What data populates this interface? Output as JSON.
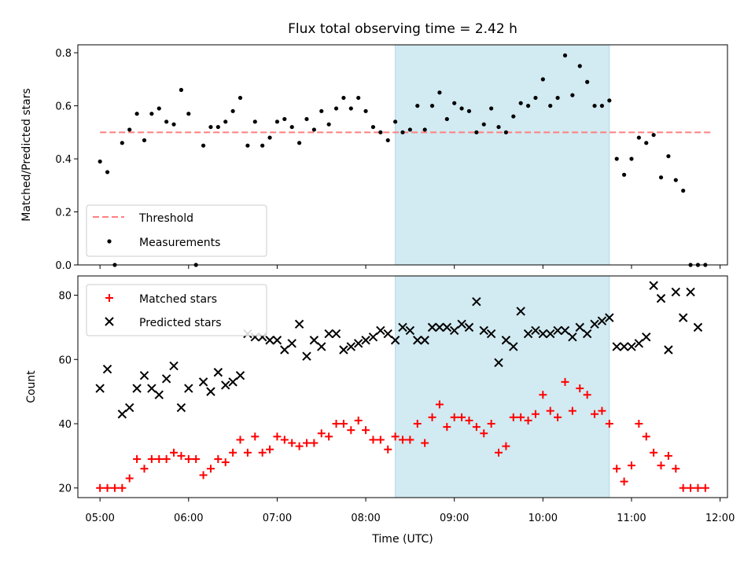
{
  "chart_data": [
    {
      "type": "scatter",
      "title": "Flux total observing time = 2.42 h",
      "ylabel": "Matched/Predicted stars",
      "xlabel": "",
      "xlim": [
        "04:45",
        "12:05"
      ],
      "ylim": [
        0,
        0.83
      ],
      "yticks": [
        "0.0",
        "0.2",
        "0.4",
        "0.6",
        "0.8"
      ],
      "xticks": [
        "05:00",
        "06:00",
        "07:00",
        "08:00",
        "09:00",
        "10:00",
        "11:00",
        "12:00"
      ],
      "shaded_interval": [
        "08:20",
        "10:45"
      ],
      "shade_color": "#add8e6",
      "threshold": {
        "name": "Threshold",
        "value": 0.5,
        "color": "#ff7f7f",
        "style": "dashed"
      },
      "series": [
        {
          "name": "Measurements",
          "color": "#000000",
          "marker": "dot",
          "x": [
            "05:00",
            "05:05",
            "05:10",
            "05:15",
            "05:20",
            "05:25",
            "05:30",
            "05:35",
            "05:40",
            "05:45",
            "05:50",
            "05:55",
            "06:00",
            "06:05",
            "06:10",
            "06:15",
            "06:20",
            "06:25",
            "06:30",
            "06:35",
            "06:40",
            "06:45",
            "06:50",
            "06:55",
            "07:00",
            "07:05",
            "07:10",
            "07:15",
            "07:20",
            "07:25",
            "07:30",
            "07:35",
            "07:40",
            "07:45",
            "07:50",
            "07:55",
            "08:00",
            "08:05",
            "08:10",
            "08:15",
            "08:20",
            "08:25",
            "08:30",
            "08:35",
            "08:40",
            "08:45",
            "08:50",
            "08:55",
            "09:00",
            "09:05",
            "09:10",
            "09:15",
            "09:20",
            "09:25",
            "09:30",
            "09:35",
            "09:40",
            "09:45",
            "09:50",
            "09:55",
            "10:00",
            "10:05",
            "10:10",
            "10:15",
            "10:20",
            "10:25",
            "10:30",
            "10:35",
            "10:40",
            "10:45",
            "10:50",
            "10:55",
            "11:00",
            "11:05",
            "11:10",
            "11:15",
            "11:20",
            "11:25",
            "11:30",
            "11:35",
            "11:40",
            "11:45",
            "11:50"
          ],
          "y": [
            0.39,
            0.35,
            0.0,
            0.46,
            0.51,
            0.57,
            0.47,
            0.57,
            0.59,
            0.54,
            0.53,
            0.66,
            0.57,
            0.0,
            0.45,
            0.52,
            0.52,
            0.54,
            0.58,
            0.63,
            0.45,
            0.54,
            0.45,
            0.48,
            0.54,
            0.55,
            0.52,
            0.46,
            0.55,
            0.51,
            0.58,
            0.53,
            0.59,
            0.63,
            0.59,
            0.63,
            0.58,
            0.52,
            0.5,
            0.47,
            0.54,
            0.5,
            0.51,
            0.6,
            0.51,
            0.6,
            0.65,
            0.55,
            0.61,
            0.59,
            0.58,
            0.5,
            0.53,
            0.59,
            0.52,
            0.5,
            0.56,
            0.61,
            0.6,
            0.63,
            0.7,
            0.6,
            0.63,
            0.79,
            0.64,
            0.75,
            0.69,
            0.6,
            0.6,
            0.62,
            0.4,
            0.34,
            0.4,
            0.48,
            0.46,
            0.49,
            0.33,
            0.41,
            0.32,
            0.28,
            0.0,
            0.0,
            0.0
          ]
        }
      ],
      "legend": {
        "placement": "lower-left",
        "entries": [
          "Threshold",
          "Measurements"
        ]
      }
    },
    {
      "type": "scatter",
      "title": "",
      "xlabel": "Time (UTC)",
      "ylabel": "Count",
      "xlim": [
        "04:45",
        "12:05"
      ],
      "ylim": [
        17,
        86
      ],
      "yticks": [
        "20",
        "40",
        "60",
        "80"
      ],
      "xticks": [
        "05:00",
        "06:00",
        "07:00",
        "08:00",
        "09:00",
        "10:00",
        "11:00",
        "12:00"
      ],
      "shaded_interval": [
        "08:20",
        "10:45"
      ],
      "shade_color": "#add8e6",
      "series": [
        {
          "name": "Matched stars",
          "color": "#ff0000",
          "marker": "plus",
          "x": [
            "05:00",
            "05:05",
            "05:10",
            "05:15",
            "05:20",
            "05:25",
            "05:30",
            "05:35",
            "05:40",
            "05:45",
            "05:50",
            "05:55",
            "06:00",
            "06:05",
            "06:10",
            "06:15",
            "06:20",
            "06:25",
            "06:30",
            "06:35",
            "06:40",
            "06:45",
            "06:50",
            "06:55",
            "07:00",
            "07:05",
            "07:10",
            "07:15",
            "07:20",
            "07:25",
            "07:30",
            "07:35",
            "07:40",
            "07:45",
            "07:50",
            "07:55",
            "08:00",
            "08:05",
            "08:10",
            "08:15",
            "08:20",
            "08:25",
            "08:30",
            "08:35",
            "08:40",
            "08:45",
            "08:50",
            "08:55",
            "09:00",
            "09:05",
            "09:10",
            "09:15",
            "09:20",
            "09:25",
            "09:30",
            "09:35",
            "09:40",
            "09:45",
            "09:50",
            "09:55",
            "10:00",
            "10:05",
            "10:10",
            "10:15",
            "10:20",
            "10:25",
            "10:30",
            "10:35",
            "10:40",
            "10:45",
            "10:50",
            "10:55",
            "11:00",
            "11:05",
            "11:10",
            "11:15",
            "11:20",
            "11:25",
            "11:30",
            "11:35",
            "11:40",
            "11:45",
            "11:50"
          ],
          "y": [
            20,
            20,
            20,
            20,
            23,
            29,
            26,
            29,
            29,
            29,
            31,
            30,
            29,
            29,
            24,
            26,
            29,
            28,
            31,
            35,
            31,
            36,
            31,
            32,
            36,
            35,
            34,
            33,
            34,
            34,
            37,
            36,
            40,
            40,
            38,
            41,
            38,
            35,
            35,
            32,
            36,
            35,
            35,
            40,
            34,
            42,
            46,
            39,
            42,
            42,
            41,
            39,
            37,
            40,
            31,
            33,
            42,
            42,
            41,
            43,
            49,
            44,
            42,
            53,
            44,
            51,
            49,
            43,
            44,
            40,
            26,
            22,
            27,
            40,
            36,
            31,
            27,
            30,
            26,
            20,
            20,
            20,
            20
          ]
        },
        {
          "name": "Predicted stars",
          "color": "#000000",
          "marker": "x",
          "x": [
            "05:00",
            "05:05",
            "05:10",
            "05:15",
            "05:20",
            "05:25",
            "05:30",
            "05:35",
            "05:40",
            "05:45",
            "05:50",
            "05:55",
            "06:00",
            "06:05",
            "06:10",
            "06:15",
            "06:20",
            "06:25",
            "06:30",
            "06:35",
            "06:40",
            "06:45",
            "06:50",
            "06:55",
            "07:00",
            "07:05",
            "07:10",
            "07:15",
            "07:20",
            "07:25",
            "07:30",
            "07:35",
            "07:40",
            "07:45",
            "07:50",
            "07:55",
            "08:00",
            "08:05",
            "08:10",
            "08:15",
            "08:20",
            "08:25",
            "08:30",
            "08:35",
            "08:40",
            "08:45",
            "08:50",
            "08:55",
            "09:00",
            "09:05",
            "09:10",
            "09:15",
            "09:20",
            "09:25",
            "09:30",
            "09:35",
            "09:40",
            "09:45",
            "09:50",
            "09:55",
            "10:00",
            "10:05",
            "10:10",
            "10:15",
            "10:20",
            "10:25",
            "10:30",
            "10:35",
            "10:40",
            "10:45",
            "10:50",
            "10:55",
            "11:00",
            "11:05",
            "11:10",
            "11:15",
            "11:20",
            "11:25",
            "11:30",
            "11:35",
            "11:40",
            "11:45",
            "11:50"
          ],
          "y": [
            51,
            57,
            null,
            43,
            45,
            51,
            55,
            51,
            49,
            54,
            58,
            45,
            51,
            null,
            53,
            50,
            56,
            52,
            53,
            55,
            68,
            67,
            67,
            66,
            66,
            63,
            65,
            71,
            61,
            66,
            64,
            68,
            68,
            63,
            64,
            65,
            66,
            67,
            69,
            68,
            66,
            70,
            69,
            66,
            66,
            70,
            70,
            70,
            69,
            71,
            70,
            78,
            69,
            68,
            59,
            66,
            64,
            75,
            68,
            69,
            68,
            68,
            69,
            69,
            67,
            70,
            68,
            71,
            72,
            73,
            64,
            64,
            64,
            65,
            67,
            83,
            79,
            63,
            81,
            73,
            81,
            70,
            null
          ]
        }
      ],
      "legend": {
        "placement": "upper-left",
        "entries": [
          "Matched stars",
          "Predicted stars"
        ]
      }
    }
  ]
}
